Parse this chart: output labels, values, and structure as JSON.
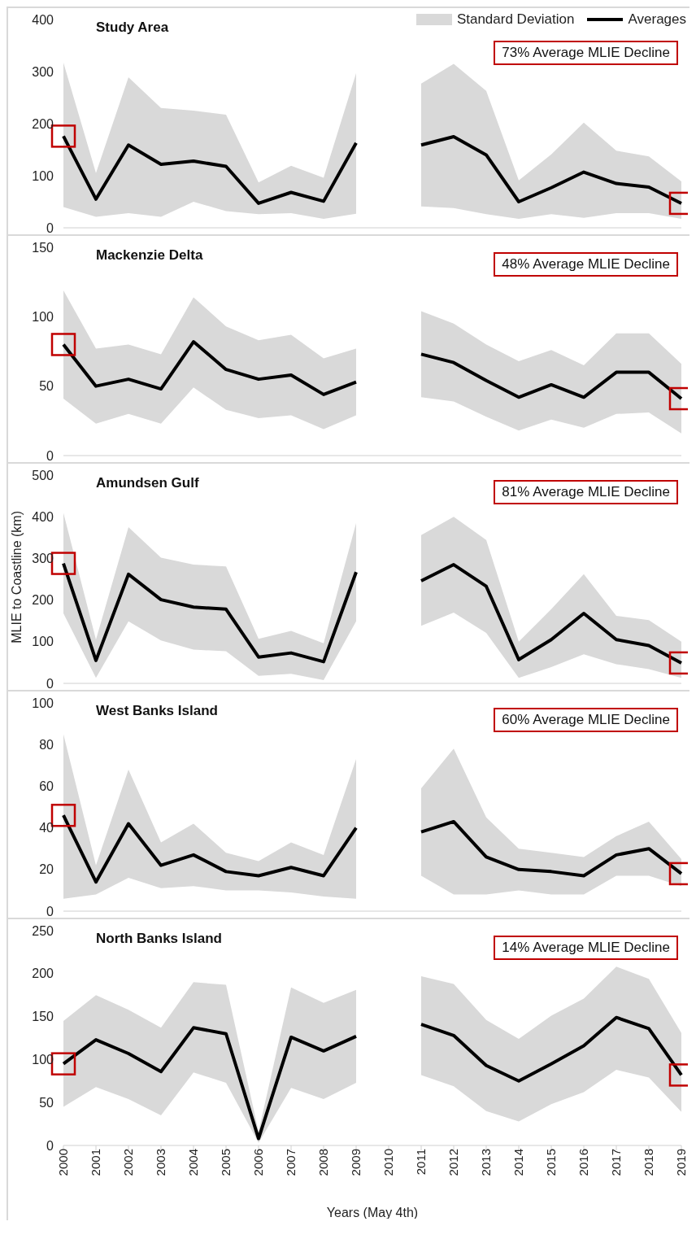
{
  "chart_data": [
    {
      "type": "line",
      "title": "Study Area",
      "categories": [
        "2000",
        "2001",
        "2002",
        "2003",
        "2004",
        "2005",
        "2006",
        "2007",
        "2008",
        "2009",
        "2010",
        "2011",
        "2012",
        "2013",
        "2014",
        "2015",
        "2016",
        "2017",
        "2018",
        "2019"
      ],
      "ylim": [
        0,
        400
      ],
      "yticks": [
        0,
        100,
        200,
        300,
        400
      ],
      "tick_labels": "y",
      "legend": "top right",
      "annotations": [
        "Standard Deviation",
        "73% Average MLIE Decline"
      ],
      "series": [
        {
          "name": "Averages",
          "color": "#000000",
          "values": [
            176,
            55,
            159,
            122,
            128,
            118,
            47,
            68,
            51,
            163,
            null,
            159,
            175,
            140,
            50,
            77,
            107,
            85,
            78,
            47
          ],
          "lower": [
            40,
            21,
            28,
            21,
            50,
            32,
            26,
            28,
            17,
            27,
            null,
            41,
            38,
            26,
            17,
            26,
            19,
            28,
            28,
            17
          ],
          "upper": [
            317,
            105,
            289,
            230,
            225,
            217,
            87,
            119,
            96,
            297,
            null,
            277,
            315,
            263,
            91,
            141,
            202,
            148,
            137,
            89
          ]
        }
      ]
    },
    {
      "type": "line",
      "title": "Mackenzie Delta",
      "categories": [
        "2000",
        "2001",
        "2002",
        "2003",
        "2004",
        "2005",
        "2006",
        "2007",
        "2008",
        "2009",
        "2010",
        "2011",
        "2012",
        "2013",
        "2014",
        "2015",
        "2016",
        "2017",
        "2018",
        "2019"
      ],
      "ylim": [
        0,
        150
      ],
      "yticks": [
        0,
        50,
        100,
        150
      ],
      "tick_labels": "y",
      "annotations": [
        "48% Average MLIE Decline"
      ],
      "series": [
        {
          "color": "#000000",
          "values": [
            80,
            50,
            55,
            48,
            82,
            62,
            55,
            58,
            44,
            53,
            null,
            73,
            67,
            54,
            42,
            51,
            42,
            60,
            60,
            41
          ],
          "lower": [
            41,
            23,
            30,
            23,
            49,
            33,
            27,
            29,
            19,
            29,
            null,
            42,
            39,
            28,
            18,
            26,
            20,
            30,
            31,
            16
          ],
          "upper": [
            119,
            77,
            80,
            73,
            114,
            93,
            83,
            87,
            70,
            77,
            null,
            104,
            95,
            80,
            68,
            76,
            65,
            88,
            88,
            66
          ]
        }
      ]
    },
    {
      "type": "line",
      "title": "Amundsen Gulf",
      "ylabel": "MLIE to Coastline (km)",
      "categories": [
        "2000",
        "2001",
        "2002",
        "2003",
        "2004",
        "2005",
        "2006",
        "2007",
        "2008",
        "2009",
        "2010",
        "2011",
        "2012",
        "2013",
        "2014",
        "2015",
        "2016",
        "2017",
        "2018",
        "2019"
      ],
      "ylim": [
        0,
        500
      ],
      "yticks": [
        0,
        100,
        200,
        300,
        400,
        500
      ],
      "tick_labels": "y",
      "annotations": [
        "81% Average MLIE Decline"
      ],
      "series": [
        {
          "color": "#000000",
          "values": [
            288,
            55,
            262,
            201,
            183,
            178,
            63,
            73,
            52,
            267,
            null,
            246,
            285,
            233,
            57,
            105,
            168,
            105,
            91,
            49
          ],
          "lower": [
            168,
            13,
            149,
            103,
            81,
            77,
            18,
            23,
            8,
            149,
            null,
            138,
            170,
            121,
            13,
            39,
            70,
            46,
            34,
            13
          ],
          "upper": [
            409,
            105,
            375,
            302,
            285,
            281,
            107,
            126,
            96,
            385,
            null,
            356,
            400,
            344,
            100,
            178,
            262,
            162,
            152,
            100
          ]
        }
      ]
    },
    {
      "type": "line",
      "title": "West Banks Island",
      "categories": [
        "2000",
        "2001",
        "2002",
        "2003",
        "2004",
        "2005",
        "2006",
        "2007",
        "2008",
        "2009",
        "2010",
        "2011",
        "2012",
        "2013",
        "2014",
        "2015",
        "2016",
        "2017",
        "2018",
        "2019"
      ],
      "ylim": [
        0,
        100
      ],
      "yticks": [
        0,
        20,
        40,
        60,
        80,
        100
      ],
      "tick_labels": "y",
      "annotations": [
        "60% Average MLIE Decline"
      ],
      "series": [
        {
          "color": "#000000",
          "values": [
            46,
            14,
            42,
            22,
            27,
            19,
            17,
            21,
            17,
            40,
            null,
            38,
            43,
            26,
            20,
            19,
            17,
            27,
            30,
            18
          ],
          "lower": [
            6,
            8,
            16,
            11,
            12,
            10,
            10,
            9,
            7,
            6,
            null,
            17,
            8,
            8,
            10,
            8,
            8,
            17,
            17,
            12
          ],
          "upper": [
            85,
            22,
            68,
            33,
            42,
            28,
            24,
            33,
            27,
            73,
            null,
            59,
            78,
            45,
            30,
            28,
            26,
            36,
            43,
            25
          ]
        }
      ]
    },
    {
      "type": "line",
      "title": "North Banks Island",
      "xlabel": "Years (May 4th)",
      "categories": [
        "2000",
        "2001",
        "2002",
        "2003",
        "2004",
        "2005",
        "2006",
        "2007",
        "2008",
        "2009",
        "2010",
        "2011",
        "2012",
        "2013",
        "2014",
        "2015",
        "2016",
        "2017",
        "2018",
        "2019"
      ],
      "ylim": [
        0,
        250
      ],
      "yticks": [
        0,
        50,
        100,
        150,
        200,
        250
      ],
      "annotations": [
        "14% Average MLIE Decline"
      ],
      "series": [
        {
          "color": "#000000",
          "values": [
            95,
            123,
            107,
            86,
            137,
            130,
            8,
            126,
            110,
            127,
            null,
            141,
            128,
            93,
            75,
            95,
            116,
            149,
            136,
            82
          ],
          "lower": [
            45,
            68,
            54,
            35,
            85,
            73,
            3,
            67,
            54,
            73,
            null,
            82,
            69,
            40,
            28,
            48,
            62,
            88,
            79,
            39
          ],
          "upper": [
            145,
            175,
            158,
            137,
            190,
            187,
            16,
            184,
            166,
            181,
            null,
            197,
            188,
            146,
            124,
            151,
            171,
            208,
            194,
            131
          ]
        }
      ]
    }
  ]
}
